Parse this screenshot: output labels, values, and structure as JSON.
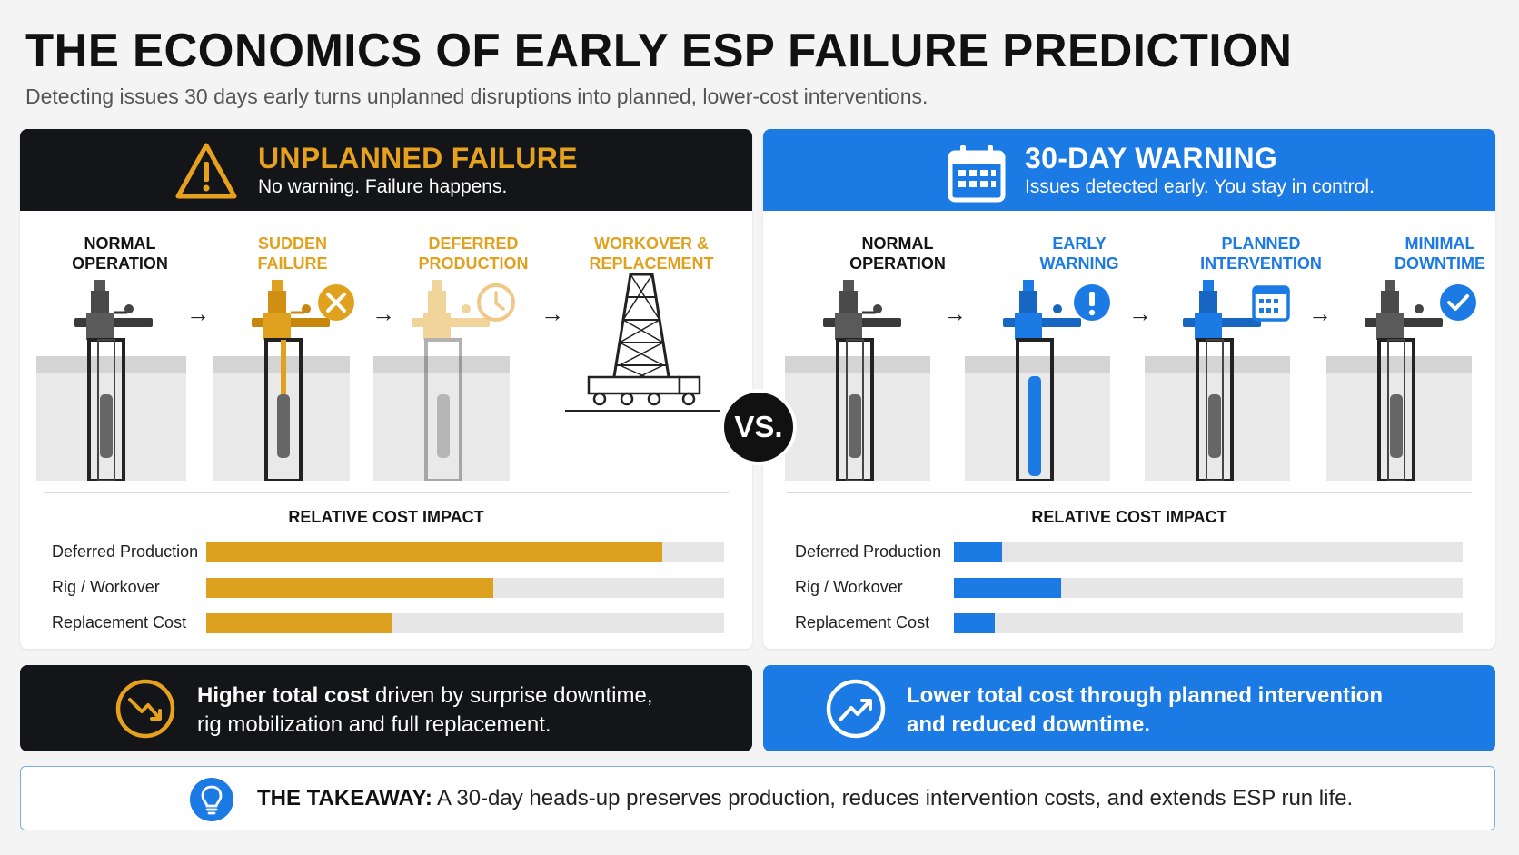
{
  "title": "THE ECONOMICS OF EARLY ESP FAILURE PREDICTION",
  "subtitle": "Detecting issues 30 days early turns unplanned disruptions into planned, lower-cost interventions.",
  "vs_label": "VS.",
  "colors": {
    "amber": "#dea01f",
    "blue": "#1b7ae4",
    "dark": "#141518"
  },
  "left": {
    "title": "UNPLANNED FAILURE",
    "subtitle": "No warning. Failure happens.",
    "icon": "warning-triangle-icon",
    "stages": [
      {
        "label_line1": "NORMAL",
        "label_line2": "OPERATION",
        "color": "#141414",
        "icon": "esp-well-icon"
      },
      {
        "label_line1": "SUDDEN",
        "label_line2": "FAILURE",
        "color": "#e0a11f",
        "icon": "x-circle-icon"
      },
      {
        "label_line1": "DEFERRED",
        "label_line2": "PRODUCTION",
        "color": "#e0a11f",
        "icon": "clock-icon"
      },
      {
        "label_line1": "WORKOVER &",
        "label_line2": "REPLACEMENT",
        "color": "#e0a11f",
        "icon": "workover-rig-icon"
      }
    ],
    "cost_title": "RELATIVE COST IMPACT",
    "costs": [
      {
        "label": "Deferred Production",
        "value": 0.88
      },
      {
        "label": "Rig / Workover",
        "value": 0.555
      },
      {
        "label": "Replacement Cost",
        "value": 0.36
      }
    ],
    "summary_bold": "Higher total cost",
    "summary_rest": " driven by surprise downtime,",
    "summary_line2": "rig mobilization and full replacement.",
    "summary_icon": "trend-down-icon"
  },
  "right": {
    "title": "30-DAY WARNING",
    "subtitle": "Issues detected early. You stay in control.",
    "icon": "calendar-icon",
    "stages": [
      {
        "label_line1": "NORMAL",
        "label_line2": "OPERATION",
        "color": "#141414",
        "icon": "esp-well-icon"
      },
      {
        "label_line1": "EARLY",
        "label_line2": "WARNING",
        "color": "#1b7ae4",
        "icon": "exclamation-circle-icon"
      },
      {
        "label_line1": "PLANNED",
        "label_line2": "INTERVENTION",
        "color": "#1b7ae4",
        "icon": "calendar-icon"
      },
      {
        "label_line1": "MINIMAL",
        "label_line2": "DOWNTIME",
        "color": "#1b7ae4",
        "icon": "check-circle-icon"
      }
    ],
    "cost_title": "RELATIVE COST IMPACT",
    "costs": [
      {
        "label": "Deferred Production",
        "value": 0.095
      },
      {
        "label": "Rig / Workover",
        "value": 0.21
      },
      {
        "label": "Replacement Cost",
        "value": 0.08
      }
    ],
    "summary_line1": "Lower total cost through planned intervention",
    "summary_line2": "and reduced downtime.",
    "summary_icon": "trend-up-icon"
  },
  "takeaway": {
    "label": "THE TAKEAWAY:",
    "text": "A 30-day heads-up preserves production, reduces intervention costs, and extends ESP run life.",
    "icon": "lightbulb-icon"
  }
}
